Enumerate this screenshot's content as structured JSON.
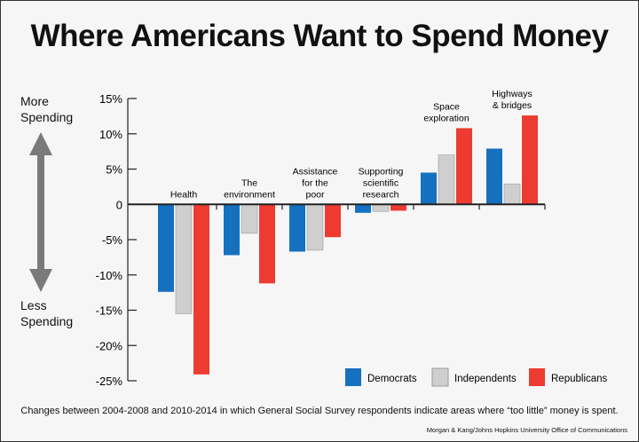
{
  "title": "Where Americans Want to Spend Money",
  "side_labels": {
    "more": "More Spending",
    "less": "Less Spending"
  },
  "footnote": "Changes between 2004-2008 and 2010-2014 in which General Social Survey respondents indicate areas where “too little” money is spent.",
  "credit": "Morgan & Kang/Johns Hopkins University Office of Communications",
  "chart_data": {
    "type": "bar",
    "title": "Where Americans Want to Spend Money",
    "categories": [
      [
        "Health"
      ],
      [
        "The",
        "environment"
      ],
      [
        "Assistance",
        "for the",
        "poor"
      ],
      [
        "Supporting",
        "scientific",
        "research"
      ],
      [
        "Space",
        "exploration"
      ],
      [
        "Highways",
        "& bridges"
      ]
    ],
    "series": [
      {
        "name": "Democrats",
        "color": "#1570c0",
        "values": [
          -12.4,
          -7.2,
          -6.7,
          -1.2,
          4.5,
          7.9
        ]
      },
      {
        "name": "Independents",
        "color": "#cfcfcf",
        "values": [
          -15.5,
          -4.1,
          -6.5,
          -1.0,
          7.0,
          2.9
        ]
      },
      {
        "name": "Republicans",
        "color": "#ee3b31",
        "values": [
          -24.1,
          -11.2,
          -4.65,
          -0.9,
          10.8,
          12.6
        ]
      }
    ],
    "ylim": [
      -25,
      15
    ],
    "yticks": [
      15,
      10,
      5,
      0,
      -5,
      -10,
      -15,
      -20,
      -25
    ],
    "ytick_labels": [
      "15%",
      "10%",
      "5%",
      "0",
      "-5%",
      "-10%",
      "-15%",
      "-20%",
      "-25%"
    ],
    "legend_position": "bottom-right",
    "grid": false
  }
}
